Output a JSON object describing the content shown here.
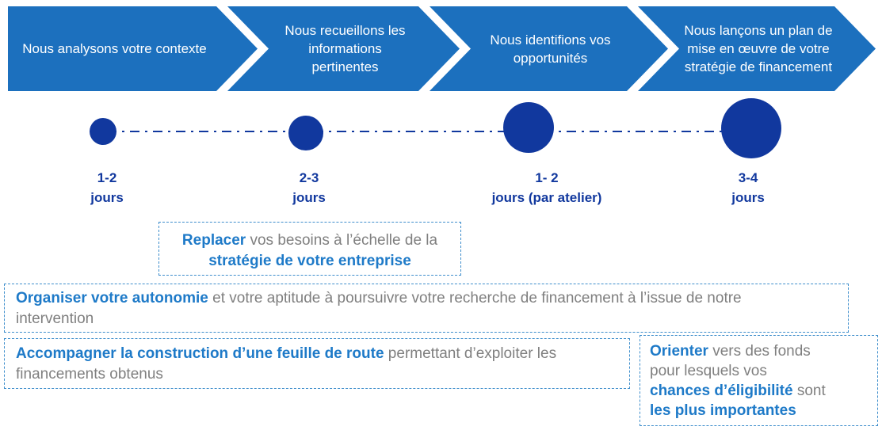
{
  "colors": {
    "chevron_blue": "#1C70BE",
    "navy": "#11389E",
    "accent_bold_blue": "#1E7AC8",
    "body_gray": "#7F7F7F",
    "dashed_border_blue": "#3E8ECC"
  },
  "process": {
    "steps": [
      "Nous analysons votre contexte",
      "Nous recueillons les informations pertinentes",
      "Nous identifions vos opportunités",
      "Nous lançons un plan de mise en œuvre de votre stratégie de financement"
    ]
  },
  "timeline": {
    "durations": [
      {
        "range": "1-2",
        "unit": "jours"
      },
      {
        "range": "2-3",
        "unit": "jours"
      },
      {
        "range": "1- 2",
        "unit": "jours (par atelier)"
      },
      {
        "range": "3-4",
        "unit": "jours"
      }
    ]
  },
  "benefits": {
    "replacer": [
      {
        "t": "Replacer",
        "b": true
      },
      {
        "t": " vos besoins à l’échelle de la",
        "b": false
      },
      {
        "br": true
      },
      {
        "t": "stratégie de votre entreprise",
        "b": true
      }
    ],
    "organiser": [
      {
        "t": "Organiser votre autonomie",
        "b": true
      },
      {
        "t": " et votre aptitude à poursuivre votre recherche de financement à l’issue de notre",
        "b": false
      },
      {
        "br": true
      },
      {
        "t": "intervention",
        "b": false
      }
    ],
    "accompagner": [
      {
        "t": "Accompagner la construction d’une feuille de route",
        "b": true
      },
      {
        "t": " permettant d’exploiter les",
        "b": false
      },
      {
        "br": true
      },
      {
        "t": "financements obtenus",
        "b": false
      }
    ],
    "orienter": [
      {
        "t": "Orienter",
        "b": true
      },
      {
        "t": " vers des fonds",
        "b": false
      },
      {
        "br": true
      },
      {
        "t": "pour lesquels vos",
        "b": false
      },
      {
        "br": true
      },
      {
        "t": "chances d’éligibilité",
        "b": true
      },
      {
        "t": " sont",
        "b": false
      },
      {
        "br": true
      },
      {
        "t": "les plus importantes",
        "b": true
      }
    ]
  }
}
